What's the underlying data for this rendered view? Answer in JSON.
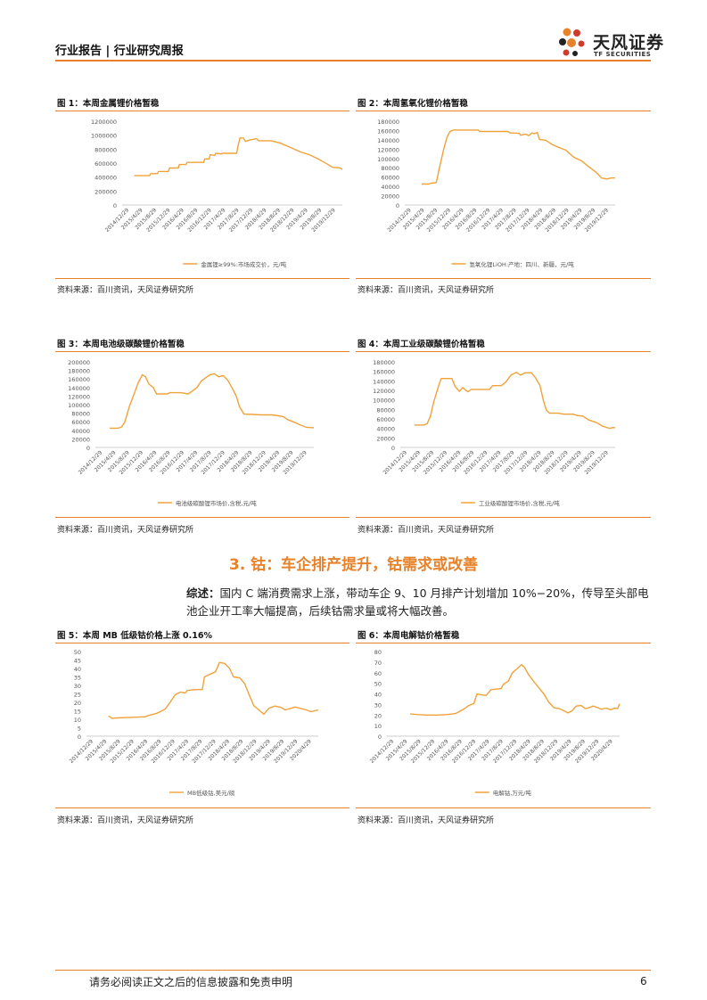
{
  "header": {
    "left": "行业报告 | 行业研究周报",
    "logo_cn": "天风证券",
    "logo_en": "TF SECURITIES"
  },
  "section": {
    "title": "3. 钴：车企排产提升，钴需求或改善",
    "summary_label": "综述：",
    "summary_text": "国内 C 端消费需求上涨，带动车企 9、10 月排产计划增加 10%−20%，传导至头部电池企业开工率大幅提高，后续钴需求量或将大幅改善。"
  },
  "footer": {
    "disclaimer": "请务必阅读正文之后的信息披露和免责申明",
    "page": "6"
  },
  "colors": {
    "accent": "#e8822a",
    "line": "#f0a23a"
  },
  "figures": [
    {
      "title": "图 1：本周金属锂价格暂稳",
      "source": "资料来源：百川资讯，天风证券研究所"
    },
    {
      "title": "图 2：本周氢氧化锂价格暂稳",
      "source": "资料来源：百川资讯，天风证券研究所"
    },
    {
      "title": "图 3：本周电池级碳酸锂价格暂稳",
      "source": "资料来源：百川资讯，天风证券研究所"
    },
    {
      "title": "图 4：本周工业级碳酸锂价格暂稳",
      "source": "资料来源：百川资讯，天风证券研究所"
    },
    {
      "title": "图 5：本周 MB 低级钴价格上涨 0.16%",
      "source": "资料来源：百川资讯，天风证券研究所"
    },
    {
      "title": "图 6：本周电解钴价格暂稳",
      "source": "资料来源：百川资讯，天风证券研究所"
    }
  ],
  "chart_data": [
    {
      "type": "line",
      "legend": "金属锂≥99%:市场成交价，元/吨",
      "yticks": [
        "0",
        "200000",
        "400000",
        "600000",
        "800000",
        "1000000",
        "1200000"
      ],
      "ylim": [
        0,
        1200000
      ],
      "xlim": [
        0,
        20
      ],
      "xticks": [
        "2014/12/29",
        "2015/4/29",
        "2015/8/29",
        "2015/12/29",
        "2016/4/29",
        "2016/8/29",
        "2016/12/29",
        "2017/4/29",
        "2017/8/29",
        "2017/12/29",
        "2018/4/29",
        "2018/8/29",
        "2018/12/29",
        "2019/4/29",
        "2019/8/29",
        "2019/12/29"
      ],
      "points": [
        [
          1.1,
          420000
        ],
        [
          2.5,
          420000
        ],
        [
          2.6,
          450000
        ],
        [
          3.2,
          450000
        ],
        [
          3.3,
          480000
        ],
        [
          4.2,
          480000
        ],
        [
          4.3,
          530000
        ],
        [
          5.1,
          530000
        ],
        [
          5.2,
          580000
        ],
        [
          5.8,
          580000
        ],
        [
          5.9,
          610000
        ],
        [
          7.4,
          610000
        ],
        [
          7.5,
          660000
        ],
        [
          7.9,
          660000
        ],
        [
          8.0,
          720000
        ],
        [
          8.4,
          710000
        ],
        [
          8.5,
          740000
        ],
        [
          9.0,
          730000
        ],
        [
          9.1,
          740000
        ],
        [
          10.4,
          740000
        ],
        [
          10.5,
          830000
        ],
        [
          10.7,
          960000
        ],
        [
          11.0,
          960000
        ],
        [
          11.2,
          910000
        ],
        [
          11.6,
          930000
        ],
        [
          12.2,
          950000
        ],
        [
          12.4,
          920000
        ],
        [
          13.5,
          920000
        ],
        [
          14.3,
          890000
        ],
        [
          15.2,
          830000
        ],
        [
          16.2,
          760000
        ],
        [
          17.0,
          720000
        ],
        [
          17.8,
          660000
        ],
        [
          18.6,
          590000
        ],
        [
          19.1,
          540000
        ],
        [
          19.8,
          530000
        ],
        [
          20.0,
          510000
        ]
      ]
    },
    {
      "type": "line",
      "legend": "氢氧化锂LiOH:产地：四川、新疆，元/吨",
      "yticks": [
        "0",
        "20000",
        "40000",
        "60000",
        "80000",
        "100000",
        "120000",
        "140000",
        "160000",
        "180000"
      ],
      "ylim": [
        0,
        180000
      ],
      "xlim": [
        0,
        20
      ],
      "xticks": [
        "2014/12/29",
        "2015/4/29",
        "2015/8/29",
        "2015/12/29",
        "2016/4/29",
        "2016/8/29",
        "2016/12/29",
        "2017/4/29",
        "2017/8/29",
        "2017/12/29",
        "2018/4/29",
        "2018/8/29",
        "2018/12/29",
        "2019/4/29",
        "2019/8/29",
        "2019/12/29"
      ],
      "points": [
        [
          1.6,
          45000
        ],
        [
          2.3,
          45000
        ],
        [
          2.5,
          47000
        ],
        [
          3.0,
          48000
        ],
        [
          3.3,
          80000
        ],
        [
          3.7,
          120000
        ],
        [
          4.0,
          145000
        ],
        [
          4.3,
          158000
        ],
        [
          4.6,
          161000
        ],
        [
          7.0,
          161000
        ],
        [
          7.1,
          158000
        ],
        [
          9.8,
          158000
        ],
        [
          10.0,
          155000
        ],
        [
          10.9,
          154000
        ],
        [
          11.0,
          150000
        ],
        [
          11.5,
          152000
        ],
        [
          11.8,
          149000
        ],
        [
          12.1,
          155000
        ],
        [
          12.3,
          153000
        ],
        [
          12.6,
          156000
        ],
        [
          12.8,
          141000
        ],
        [
          13.4,
          139000
        ],
        [
          14.0,
          130000
        ],
        [
          14.6,
          124000
        ],
        [
          15.3,
          118000
        ],
        [
          16.1,
          102000
        ],
        [
          16.8,
          95000
        ],
        [
          17.5,
          82000
        ],
        [
          18.2,
          70000
        ],
        [
          18.7,
          58000
        ],
        [
          19.2,
          56000
        ],
        [
          19.6,
          58000
        ],
        [
          20.0,
          58000
        ]
      ]
    },
    {
      "type": "line",
      "legend": "电池级碳酸锂市场价,含税,元/吨",
      "yticks": [
        "0",
        "20000",
        "40000",
        "60000",
        "80000",
        "100000",
        "120000",
        "140000",
        "160000",
        "180000",
        "200000"
      ],
      "ylim": [
        0,
        200000
      ],
      "xlim": [
        0,
        20
      ],
      "xticks": [
        "2014/12/29",
        "2015/4/29",
        "2015/8/29",
        "2015/12/29",
        "2016/4/29",
        "2016/8/29",
        "2016/12/29",
        "2017/4/29",
        "2017/8/29",
        "2017/12/29",
        "2018/4/29",
        "2018/8/29",
        "2018/12/29",
        "2019/4/29",
        "2019/8/29",
        "2019/12/29"
      ],
      "points": [
        [
          1.3,
          45000
        ],
        [
          2.1,
          45000
        ],
        [
          2.4,
          48000
        ],
        [
          2.7,
          60000
        ],
        [
          3.1,
          95000
        ],
        [
          3.5,
          122000
        ],
        [
          3.9,
          150000
        ],
        [
          4.3,
          170000
        ],
        [
          4.6,
          165000
        ],
        [
          4.9,
          148000
        ],
        [
          5.3,
          140000
        ],
        [
          5.6,
          125000
        ],
        [
          6.6,
          125000
        ],
        [
          6.8,
          128000
        ],
        [
          7.8,
          128000
        ],
        [
          8.5,
          125000
        ],
        [
          8.9,
          132000
        ],
        [
          9.3,
          140000
        ],
        [
          9.7,
          155000
        ],
        [
          10.1,
          163000
        ],
        [
          10.5,
          170000
        ],
        [
          10.9,
          172000
        ],
        [
          11.3,
          165000
        ],
        [
          11.7,
          168000
        ],
        [
          12.1,
          158000
        ],
        [
          12.5,
          140000
        ],
        [
          12.9,
          120000
        ],
        [
          13.2,
          95000
        ],
        [
          13.6,
          78000
        ],
        [
          14.4,
          77000
        ],
        [
          15.2,
          76000
        ],
        [
          16.1,
          76000
        ],
        [
          16.5,
          75000
        ],
        [
          17.2,
          72000
        ],
        [
          17.6,
          65000
        ],
        [
          18.3,
          58000
        ],
        [
          18.8,
          52000
        ],
        [
          19.3,
          47000
        ],
        [
          20.0,
          46000
        ]
      ]
    },
    {
      "type": "line",
      "legend": "工业级碳酸锂市场价,含税,元/吨",
      "yticks": [
        "0",
        "20000",
        "40000",
        "60000",
        "80000",
        "100000",
        "120000",
        "140000",
        "160000",
        "180000"
      ],
      "ylim": [
        0,
        180000
      ],
      "xlim": [
        0,
        20
      ],
      "xticks": [
        "2014/12/29",
        "2015/4/29",
        "2015/8/29",
        "2015/12/29",
        "2016/4/29",
        "2016/8/29",
        "2016/12/29",
        "2017/4/29",
        "2017/8/29",
        "2017/12/29",
        "2018/4/29",
        "2018/8/29",
        "2018/12/29",
        "2019/4/29",
        "2019/8/29",
        "2019/12/29"
      ],
      "points": [
        [
          1.3,
          47000
        ],
        [
          2.2,
          47000
        ],
        [
          2.5,
          50000
        ],
        [
          2.8,
          65000
        ],
        [
          3.1,
          95000
        ],
        [
          3.5,
          125000
        ],
        [
          3.8,
          145000
        ],
        [
          4.8,
          145000
        ],
        [
          5.1,
          128000
        ],
        [
          5.5,
          118000
        ],
        [
          5.8,
          126000
        ],
        [
          6.1,
          120000
        ],
        [
          6.3,
          117000
        ],
        [
          6.6,
          122000
        ],
        [
          8.3,
          122000
        ],
        [
          8.6,
          130000
        ],
        [
          9.4,
          130000
        ],
        [
          9.8,
          137000
        ],
        [
          10.3,
          152000
        ],
        [
          10.8,
          158000
        ],
        [
          11.2,
          152000
        ],
        [
          11.6,
          157000
        ],
        [
          12.2,
          157000
        ],
        [
          12.6,
          146000
        ],
        [
          13.0,
          130000
        ],
        [
          13.3,
          100000
        ],
        [
          13.6,
          78000
        ],
        [
          13.9,
          72000
        ],
        [
          14.7,
          72000
        ],
        [
          15.2,
          70000
        ],
        [
          16.1,
          70000
        ],
        [
          16.5,
          67000
        ],
        [
          17.0,
          66000
        ],
        [
          17.5,
          58000
        ],
        [
          18.3,
          52000
        ],
        [
          18.8,
          45000
        ],
        [
          19.5,
          40000
        ],
        [
          19.8,
          42000
        ],
        [
          20.0,
          41000
        ]
      ]
    },
    {
      "type": "line",
      "legend": "MB低级钴,美元/磅",
      "yticks": [
        "0",
        "5",
        "10",
        "15",
        "20",
        "25",
        "30",
        "35",
        "40",
        "45",
        "50"
      ],
      "ylim": [
        0,
        50
      ],
      "xlim": [
        0,
        23
      ],
      "xticks": [
        "2014/12/29",
        "2015/4/29",
        "2015/8/29",
        "2015/12/29",
        "2016/4/29",
        "2016/8/29",
        "2016/12/29",
        "2017/4/29",
        "2017/8/29",
        "2017/12/29",
        "2018/4/29",
        "2018/8/29",
        "2018/12/29",
        "2019/4/29",
        "2019/8/29",
        "2019/12/29",
        "2020/4/29"
      ],
      "points": [
        [
          2.2,
          12
        ],
        [
          2.5,
          10.5
        ],
        [
          3.0,
          10.8
        ],
        [
          4.0,
          11
        ],
        [
          5.0,
          11.2
        ],
        [
          5.8,
          11.5
        ],
        [
          6.3,
          12.5
        ],
        [
          7.0,
          13.5
        ],
        [
          7.8,
          16
        ],
        [
          8.3,
          20
        ],
        [
          8.8,
          24.5
        ],
        [
          9.3,
          26
        ],
        [
          9.8,
          25.5
        ],
        [
          10.0,
          27
        ],
        [
          10.8,
          27.5
        ],
        [
          11.5,
          27.5
        ],
        [
          11.7,
          35
        ],
        [
          12.2,
          36.5
        ],
        [
          12.8,
          38
        ],
        [
          13.2,
          43.5
        ],
        [
          13.7,
          43
        ],
        [
          14.2,
          40
        ],
        [
          14.6,
          35
        ],
        [
          15.2,
          34.5
        ],
        [
          15.7,
          31
        ],
        [
          16.1,
          25
        ],
        [
          16.6,
          18
        ],
        [
          17.2,
          15
        ],
        [
          17.6,
          13
        ],
        [
          18.1,
          16.5
        ],
        [
          18.7,
          17.8
        ],
        [
          19.3,
          17
        ],
        [
          19.7,
          15.5
        ],
        [
          20.3,
          16.5
        ],
        [
          20.7,
          17.2
        ],
        [
          21.2,
          16.5
        ],
        [
          21.8,
          15.5
        ],
        [
          22.3,
          14.5
        ],
        [
          23.0,
          15.5
        ]
      ]
    },
    {
      "type": "line",
      "legend": "电解钴,万元/吨",
      "yticks": [
        "0",
        "10",
        "20",
        "30",
        "40",
        "50",
        "60",
        "70",
        "80"
      ],
      "ylim": [
        0,
        80
      ],
      "xlim": [
        0,
        23
      ],
      "xticks": [
        "2014/12/29",
        "2015/4/29",
        "2015/8/29",
        "2015/12/29",
        "2016/4/29",
        "2016/8/29",
        "2016/12/29",
        "2017/4/29",
        "2017/8/29",
        "2017/12/29",
        "2018/4/29",
        "2018/8/29",
        "2018/12/29",
        "2019/4/29",
        "2019/8/29",
        "2019/12/29",
        "2020/4/29"
      ],
      "points": [
        [
          2.3,
          21
        ],
        [
          3.0,
          20.5
        ],
        [
          4.0,
          20
        ],
        [
          5.0,
          20
        ],
        [
          6.0,
          20.5
        ],
        [
          6.8,
          21.5
        ],
        [
          7.5,
          25
        ],
        [
          8.1,
          29
        ],
        [
          8.6,
          31
        ],
        [
          8.9,
          40
        ],
        [
          9.4,
          39
        ],
        [
          9.8,
          38.5
        ],
        [
          10.3,
          44
        ],
        [
          10.8,
          44.5
        ],
        [
          11.3,
          45
        ],
        [
          11.5,
          49
        ],
        [
          12.0,
          52
        ],
        [
          12.4,
          60
        ],
        [
          12.9,
          64
        ],
        [
          13.3,
          67.5
        ],
        [
          13.6,
          65
        ],
        [
          14.0,
          58
        ],
        [
          14.5,
          52
        ],
        [
          15.0,
          46
        ],
        [
          15.5,
          40
        ],
        [
          16.0,
          32
        ],
        [
          16.5,
          27
        ],
        [
          17.0,
          26
        ],
        [
          17.4,
          24.5
        ],
        [
          17.9,
          22
        ],
        [
          18.3,
          24
        ],
        [
          18.7,
          28.5
        ],
        [
          19.2,
          29
        ],
        [
          19.6,
          26
        ],
        [
          20.0,
          27
        ],
        [
          20.4,
          28.5
        ],
        [
          20.8,
          27
        ],
        [
          21.2,
          25.5
        ],
        [
          21.7,
          26.5
        ],
        [
          22.1,
          25
        ],
        [
          22.5,
          26.5
        ],
        [
          22.8,
          26
        ],
        [
          23.0,
          30.5
        ]
      ]
    }
  ]
}
